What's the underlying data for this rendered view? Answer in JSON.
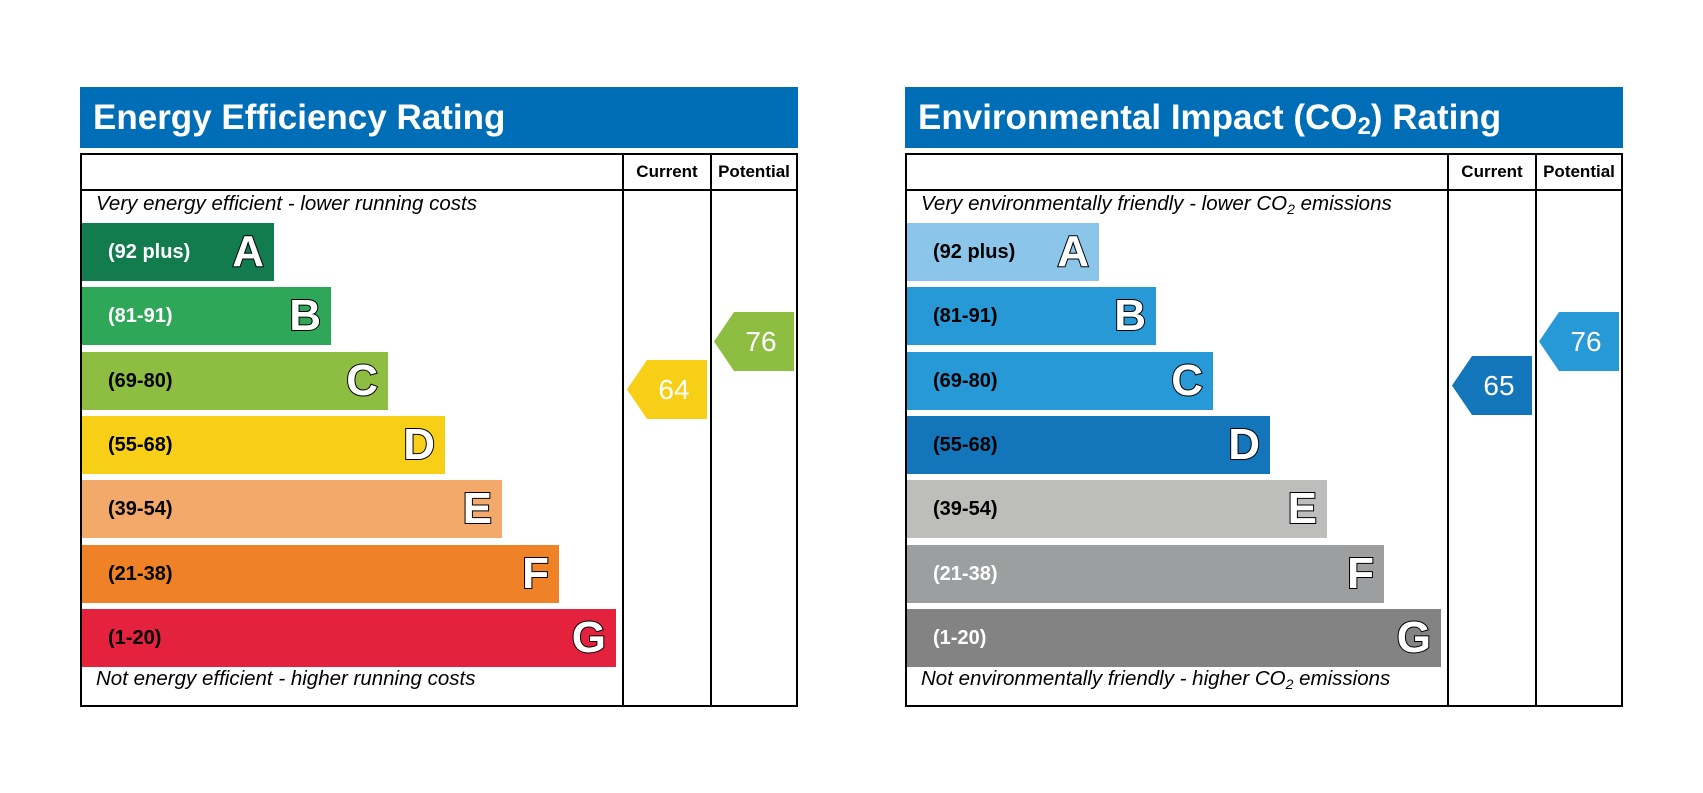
{
  "chart_data": [
    {
      "type": "bar",
      "title": "Energy Efficiency Rating",
      "columns": [
        "Current",
        "Potential"
      ],
      "top_note": "Very energy efficient - lower running costs",
      "bottom_note": "Not energy efficient - higher running costs",
      "bands": [
        {
          "letter": "A",
          "range": "(92 plus)",
          "color": "#127c4f",
          "text_color": "#ffffff"
        },
        {
          "letter": "B",
          "range": "(81-91)",
          "color": "#2ea858",
          "text_color": "#ffffff"
        },
        {
          "letter": "C",
          "range": "(69-80)",
          "color": "#8ebe41",
          "text_color": "#000000"
        },
        {
          "letter": "D",
          "range": "(55-68)",
          "color": "#f6cf16",
          "text_color": "#000000"
        },
        {
          "letter": "E",
          "range": "(39-54)",
          "color": "#f2a969",
          "text_color": "#000000"
        },
        {
          "letter": "F",
          "range": "(21-38)",
          "color": "#ef8226",
          "text_color": "#000000"
        },
        {
          "letter": "G",
          "range": "(1-20)",
          "color": "#e4223e",
          "text_color": "#000000"
        }
      ],
      "current": {
        "value": 64,
        "band": "D",
        "color": "#f6cf16"
      },
      "potential": {
        "value": 76,
        "band": "C",
        "color": "#8ebe41"
      }
    },
    {
      "type": "bar",
      "title": "Environmental Impact (CO",
      "title_sub": "2",
      "title_end": ") Rating",
      "columns": [
        "Current",
        "Potential"
      ],
      "top_note": "Very environmentally friendly - lower CO",
      "top_note_sub": "2",
      "top_note_end": " emissions",
      "bottom_note": "Not environmentally friendly - higher CO",
      "bottom_note_sub": "2",
      "bottom_note_end": " emissions",
      "bands": [
        {
          "letter": "A",
          "range": "(92 plus)",
          "color": "#8bc5e9",
          "text_color": "#000000"
        },
        {
          "letter": "B",
          "range": "(81-91)",
          "color": "#2699d6",
          "text_color": "#000000"
        },
        {
          "letter": "C",
          "range": "(69-80)",
          "color": "#2699d6",
          "text_color": "#000000"
        },
        {
          "letter": "D",
          "range": "(55-68)",
          "color": "#1376bb",
          "text_color": "#000000"
        },
        {
          "letter": "E",
          "range": "(39-54)",
          "color": "#bdbdbb",
          "text_color": "#000000"
        },
        {
          "letter": "F",
          "range": "(21-38)",
          "color": "#9d9e9f",
          "text_color": "#ffffff"
        },
        {
          "letter": "G",
          "range": "(1-20)",
          "color": "#838383",
          "text_color": "#ffffff"
        }
      ],
      "current": {
        "value": 65,
        "band": "D",
        "color": "#1376bb"
      },
      "potential": {
        "value": 76,
        "band": "C",
        "color": "#2699d6"
      }
    }
  ]
}
